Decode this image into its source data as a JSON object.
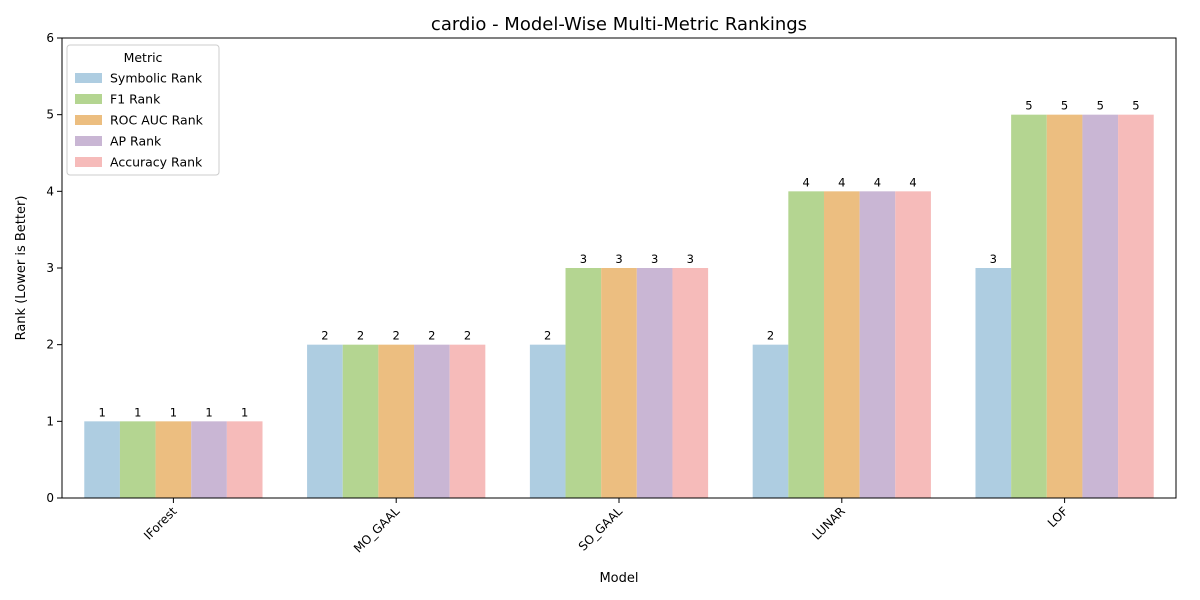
{
  "chart_data": {
    "type": "bar",
    "title": "cardio - Model-Wise Multi-Metric Rankings",
    "xlabel": "Model",
    "ylabel": "Rank (Lower is Better)",
    "ylim": [
      0,
      6
    ],
    "yticks": [
      0,
      1,
      2,
      3,
      4,
      5,
      6
    ],
    "categories": [
      "IForest",
      "MO_GAAL",
      "SO_GAAL",
      "LUNAR",
      "LOF"
    ],
    "series": [
      {
        "name": "Symbolic Rank",
        "color": "#aecde1",
        "values": [
          1,
          2,
          2,
          2,
          3
        ]
      },
      {
        "name": "F1 Rank",
        "color": "#b4d591",
        "values": [
          1,
          2,
          3,
          4,
          5
        ]
      },
      {
        "name": "ROC AUC Rank",
        "color": "#ecbe80",
        "values": [
          1,
          2,
          3,
          4,
          5
        ]
      },
      {
        "name": "AP Rank",
        "color": "#c9b6d4",
        "values": [
          1,
          2,
          3,
          4,
          5
        ]
      },
      {
        "name": "Accuracy Rank",
        "color": "#f6bbba",
        "values": [
          1,
          2,
          3,
          4,
          5
        ]
      }
    ],
    "legend": {
      "title": "Metric",
      "placement": "top-left"
    },
    "grid": false,
    "tick_label_rotation": 45
  }
}
